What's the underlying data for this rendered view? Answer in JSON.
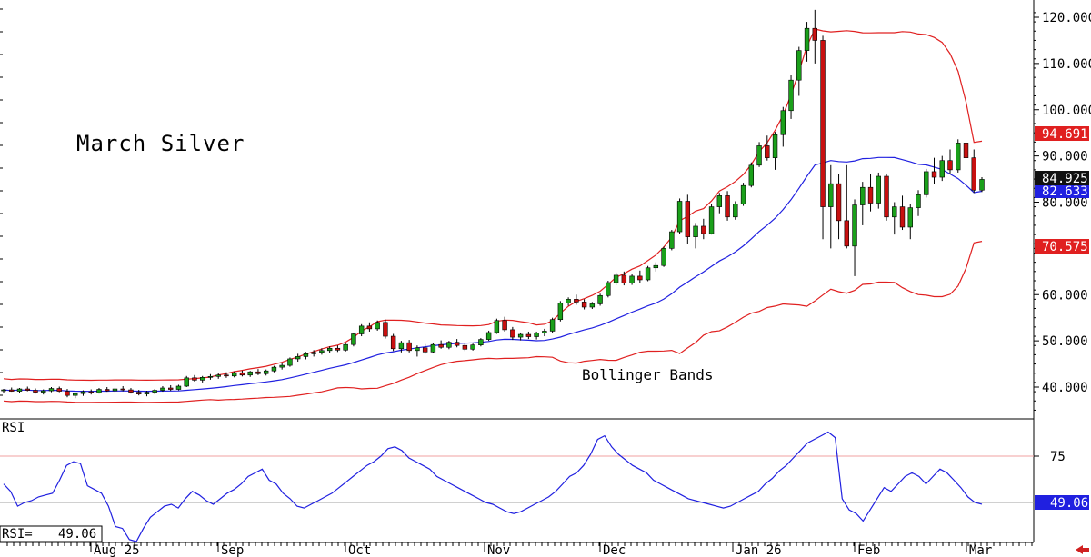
{
  "title": "March Silver",
  "annotation": "Bollinger Bands",
  "price_axis": {
    "ticks": [
      "120.000",
      "110.000",
      "100.000",
      "90.000",
      "80.000",
      "70.000",
      "60.000",
      "50.000",
      "40.000"
    ]
  },
  "price_tags": {
    "last": "84.925",
    "upper": "94.691",
    "middle": "82.633",
    "lower": "70.575"
  },
  "rsi_panel": {
    "label": "RSI",
    "readout_label": "RSI=",
    "readout_value": "49.06",
    "tag": "49.06",
    "ticks": [
      "75"
    ]
  },
  "x_axis": {
    "labels": [
      "Aug 25",
      "Sep",
      "Oct",
      "Nov",
      "Dec",
      "Jan 26",
      "Feb",
      "Mar"
    ]
  },
  "colors": {
    "up": "#1aa01a",
    "down": "#c81010",
    "band": "#e02020",
    "mid": "#2020e0",
    "rsi": "#2020e0",
    "tag_red": "#e02020",
    "tag_blue": "#2020e0",
    "tag_black": "#101010"
  },
  "chart_data": [
    {
      "type": "candlestick",
      "title": "March Silver",
      "annotations": [
        "Bollinger Bands"
      ],
      "y_axis": "right",
      "ylim": [
        33,
        122
      ],
      "series": [
        {
          "name": "Bollinger Bands",
          "upper": 94.691,
          "middle": 82.633,
          "lower": 70.575
        },
        {
          "name": "last",
          "value": 84.925
        }
      ],
      "candles": [
        [
          39.2,
          39.6,
          38.8,
          39.4
        ],
        [
          39.4,
          39.9,
          39.0,
          39.1
        ],
        [
          39.1,
          39.8,
          38.7,
          39.6
        ],
        [
          39.6,
          40.1,
          39.1,
          39.3
        ],
        [
          39.3,
          39.7,
          38.6,
          38.9
        ],
        [
          38.9,
          39.5,
          38.4,
          39.2
        ],
        [
          39.2,
          40.0,
          38.9,
          39.7
        ],
        [
          39.7,
          40.1,
          38.9,
          39.1
        ],
        [
          39.1,
          39.6,
          37.8,
          38.2
        ],
        [
          38.2,
          38.8,
          37.6,
          38.6
        ],
        [
          38.6,
          39.3,
          38.1,
          39.0
        ],
        [
          39.0,
          39.5,
          38.4,
          38.8
        ],
        [
          38.8,
          39.8,
          38.6,
          39.5
        ],
        [
          39.5,
          40.0,
          39.0,
          39.2
        ],
        [
          39.2,
          39.9,
          38.8,
          39.6
        ],
        [
          39.6,
          40.2,
          39.1,
          39.4
        ],
        [
          39.4,
          39.8,
          38.6,
          38.9
        ],
        [
          38.9,
          39.4,
          38.2,
          38.5
        ],
        [
          38.5,
          39.2,
          38.0,
          38.9
        ],
        [
          38.9,
          39.6,
          38.5,
          39.3
        ],
        [
          39.3,
          40.2,
          39.0,
          39.8
        ],
        [
          39.8,
          40.4,
          39.2,
          39.5
        ],
        [
          39.5,
          40.5,
          39.3,
          40.2
        ],
        [
          40.2,
          42.4,
          40.0,
          42.0
        ],
        [
          42.0,
          42.6,
          41.2,
          41.5
        ],
        [
          41.5,
          42.4,
          41.0,
          42.1
        ],
        [
          42.1,
          42.8,
          41.6,
          42.3
        ],
        [
          42.3,
          43.0,
          41.8,
          42.6
        ],
        [
          42.6,
          43.2,
          42.0,
          42.4
        ],
        [
          42.4,
          43.4,
          42.1,
          43.1
        ],
        [
          43.1,
          43.6,
          42.3,
          42.6
        ],
        [
          42.6,
          43.5,
          42.2,
          43.3
        ],
        [
          43.3,
          43.9,
          42.6,
          42.9
        ],
        [
          42.9,
          43.8,
          42.5,
          43.5
        ],
        [
          43.5,
          44.6,
          43.2,
          44.3
        ],
        [
          44.3,
          45.2,
          43.8,
          44.7
        ],
        [
          44.7,
          46.4,
          44.4,
          46.1
        ],
        [
          46.1,
          47.2,
          45.5,
          46.6
        ],
        [
          46.6,
          47.6,
          46.0,
          47.2
        ],
        [
          47.2,
          48.0,
          46.6,
          47.5
        ],
        [
          47.5,
          48.4,
          47.0,
          47.9
        ],
        [
          47.9,
          48.8,
          47.3,
          48.4
        ],
        [
          48.4,
          49.0,
          47.6,
          48.0
        ],
        [
          48.0,
          49.5,
          47.7,
          49.2
        ],
        [
          49.2,
          51.8,
          48.8,
          51.5
        ],
        [
          51.5,
          53.6,
          51.0,
          53.2
        ],
        [
          53.2,
          54.0,
          52.0,
          52.6
        ],
        [
          52.6,
          54.4,
          52.2,
          54.0
        ],
        [
          54.0,
          54.6,
          50.5,
          51.0
        ],
        [
          51.0,
          51.5,
          47.8,
          48.3
        ],
        [
          48.3,
          50.0,
          47.5,
          49.6
        ],
        [
          49.6,
          50.2,
          47.5,
          47.9
        ],
        [
          47.9,
          49.0,
          46.6,
          48.5
        ],
        [
          48.5,
          49.3,
          47.2,
          47.6
        ],
        [
          47.6,
          49.6,
          47.3,
          49.2
        ],
        [
          49.2,
          50.1,
          48.3,
          48.6
        ],
        [
          48.6,
          50.0,
          48.2,
          49.7
        ],
        [
          49.7,
          50.4,
          48.6,
          49.0
        ],
        [
          49.0,
          49.6,
          47.8,
          48.2
        ],
        [
          48.2,
          49.4,
          47.9,
          49.1
        ],
        [
          49.1,
          50.6,
          48.8,
          50.3
        ],
        [
          50.3,
          52.2,
          50.0,
          51.8
        ],
        [
          51.8,
          54.8,
          51.5,
          54.4
        ],
        [
          54.4,
          55.2,
          52.0,
          52.4
        ],
        [
          52.4,
          53.0,
          50.2,
          50.8
        ],
        [
          50.8,
          51.8,
          50.1,
          51.4
        ],
        [
          51.4,
          52.0,
          50.4,
          50.9
        ],
        [
          50.9,
          52.0,
          50.3,
          51.7
        ],
        [
          51.7,
          52.6,
          51.0,
          52.1
        ],
        [
          52.1,
          55.0,
          51.8,
          54.6
        ],
        [
          54.6,
          58.6,
          54.2,
          58.2
        ],
        [
          58.2,
          59.4,
          57.6,
          59.0
        ],
        [
          59.0,
          60.0,
          57.8,
          58.4
        ],
        [
          58.4,
          59.0,
          56.8,
          57.3
        ],
        [
          57.3,
          58.4,
          56.9,
          58.0
        ],
        [
          58.0,
          60.2,
          57.6,
          59.8
        ],
        [
          59.8,
          63.0,
          59.4,
          62.6
        ],
        [
          62.6,
          64.8,
          62.0,
          64.2
        ],
        [
          64.2,
          65.0,
          62.0,
          62.5
        ],
        [
          62.5,
          64.4,
          62.1,
          64.0
        ],
        [
          64.0,
          65.2,
          62.6,
          63.2
        ],
        [
          63.2,
          66.2,
          62.9,
          65.8
        ],
        [
          65.8,
          67.0,
          65.0,
          66.3
        ],
        [
          66.3,
          70.4,
          66.0,
          70.0
        ],
        [
          70.0,
          74.0,
          69.6,
          73.6
        ],
        [
          73.6,
          80.8,
          73.2,
          80.2
        ],
        [
          80.2,
          81.6,
          71.0,
          72.5
        ],
        [
          72.5,
          75.5,
          70.0,
          74.8
        ],
        [
          74.8,
          76.4,
          72.0,
          73.2
        ],
        [
          73.2,
          79.6,
          73.0,
          79.0
        ],
        [
          79.0,
          82.0,
          77.6,
          81.4
        ],
        [
          81.4,
          82.4,
          76.0,
          76.8
        ],
        [
          76.8,
          80.2,
          76.2,
          79.6
        ],
        [
          79.6,
          84.2,
          79.2,
          83.6
        ],
        [
          83.6,
          88.6,
          83.2,
          88.0
        ],
        [
          88.0,
          93.0,
          87.6,
          92.2
        ],
        [
          92.2,
          94.4,
          89.0,
          89.6
        ],
        [
          89.6,
          95.2,
          87.0,
          94.6
        ],
        [
          94.6,
          100.6,
          92.0,
          99.8
        ],
        [
          99.8,
          107.6,
          98.0,
          106.4
        ],
        [
          106.4,
          113.6,
          103.0,
          112.8
        ],
        [
          112.8,
          119.0,
          110.4,
          117.6
        ],
        [
          117.6,
          121.6,
          110.0,
          115.0
        ],
        [
          115.0,
          116.0,
          72.0,
          79.0
        ],
        [
          79.0,
          88.0,
          70.0,
          84.0
        ],
        [
          84.0,
          86.0,
          72.0,
          76.0
        ],
        [
          76.0,
          88.0,
          70.0,
          70.5
        ],
        [
          70.5,
          80.6,
          64.0,
          79.4
        ],
        [
          79.4,
          84.4,
          75.0,
          83.2
        ],
        [
          83.2,
          86.0,
          78.0,
          79.8
        ],
        [
          79.8,
          86.4,
          78.6,
          85.6
        ],
        [
          85.6,
          86.2,
          76.0,
          76.8
        ],
        [
          76.8,
          80.0,
          73.0,
          79.0
        ],
        [
          79.0,
          81.4,
          74.0,
          74.6
        ],
        [
          74.6,
          79.6,
          72.0,
          78.8
        ],
        [
          78.8,
          82.6,
          77.0,
          81.6
        ],
        [
          81.6,
          87.2,
          81.0,
          86.6
        ],
        [
          86.6,
          89.6,
          84.0,
          85.4
        ],
        [
          85.4,
          90.0,
          84.6,
          89.0
        ],
        [
          89.0,
          91.4,
          86.0,
          87.0
        ],
        [
          87.0,
          93.6,
          86.4,
          92.8
        ],
        [
          92.8,
          95.6,
          88.0,
          89.6
        ],
        [
          89.6,
          91.4,
          82.0,
          82.6
        ],
        [
          82.6,
          85.4,
          82.2,
          84.925
        ]
      ]
    },
    {
      "type": "line",
      "title": "RSI",
      "y_axis": "right",
      "ylim": [
        0,
        100
      ],
      "reference_lines": [
        75,
        50
      ],
      "series": [
        {
          "name": "RSI",
          "values": [
            60,
            56,
            48,
            50,
            51,
            53,
            54,
            55,
            62,
            70,
            72,
            71,
            59,
            57,
            55,
            48,
            37,
            36,
            30,
            28,
            36,
            42,
            45,
            48,
            49,
            47,
            52,
            56,
            54,
            51,
            49,
            52,
            55,
            57,
            60,
            64,
            66,
            68,
            62,
            60,
            55,
            52,
            48,
            47,
            49,
            51,
            53,
            55,
            58,
            61,
            64,
            67,
            70,
            72,
            75,
            79,
            80,
            78,
            74,
            72,
            70,
            68,
            64,
            62,
            60,
            58,
            56,
            54,
            52,
            50,
            49,
            47,
            45,
            44,
            45,
            47,
            49,
            51,
            53,
            56,
            60,
            64,
            66,
            70,
            76,
            84,
            86,
            80,
            76,
            73,
            70,
            68,
            66,
            62,
            60,
            58,
            56,
            54,
            52,
            51,
            50,
            49,
            48,
            47,
            48,
            50,
            52,
            54,
            56,
            60,
            63,
            67,
            70,
            74,
            78,
            82,
            84,
            86,
            88,
            85,
            52,
            46,
            44,
            40,
            46,
            52,
            58,
            56,
            60,
            64,
            66,
            64,
            60,
            64,
            68,
            66,
            62,
            58,
            53,
            50,
            49.06
          ]
        }
      ]
    }
  ]
}
